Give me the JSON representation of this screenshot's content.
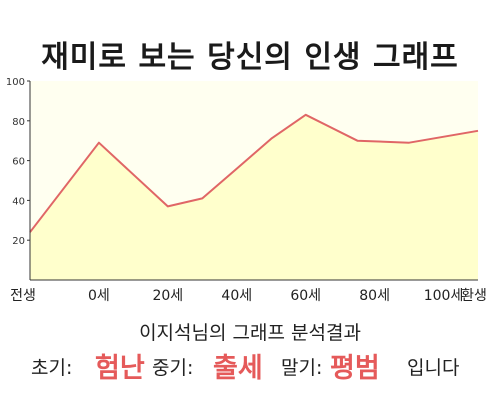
{
  "title": "재미로 보는 당신의 인생 그래프",
  "subtitle": "이지석님의 그래프 분석결과",
  "results": {
    "early_label": "초기:",
    "early_value": "험난",
    "middle_label": "중기:",
    "middle_value": "출세",
    "late_label": "말기:",
    "late_value": "평범",
    "suffix": "입니다"
  },
  "colors": {
    "line": "#e06666",
    "fill": "#ffffcc",
    "plot_bg": "#fffff0",
    "highlight": "#e55a5a"
  },
  "chart_data": {
    "type": "area",
    "title": "재미로 보는 당신의 인생 그래프",
    "xlabel": "",
    "ylabel": "",
    "ylim": [
      0,
      100
    ],
    "yticks": [
      20,
      40,
      60,
      80,
      100
    ],
    "categories": [
      "전생",
      "0세",
      "20세",
      "40세",
      "60세",
      "80세",
      "100세",
      "환생"
    ],
    "x": [
      -20,
      0,
      20,
      30,
      40,
      50,
      60,
      75,
      90,
      110
    ],
    "values": [
      24,
      69,
      37,
      41,
      56,
      71,
      83,
      70,
      69,
      75
    ],
    "grid": false,
    "legend": "none"
  }
}
